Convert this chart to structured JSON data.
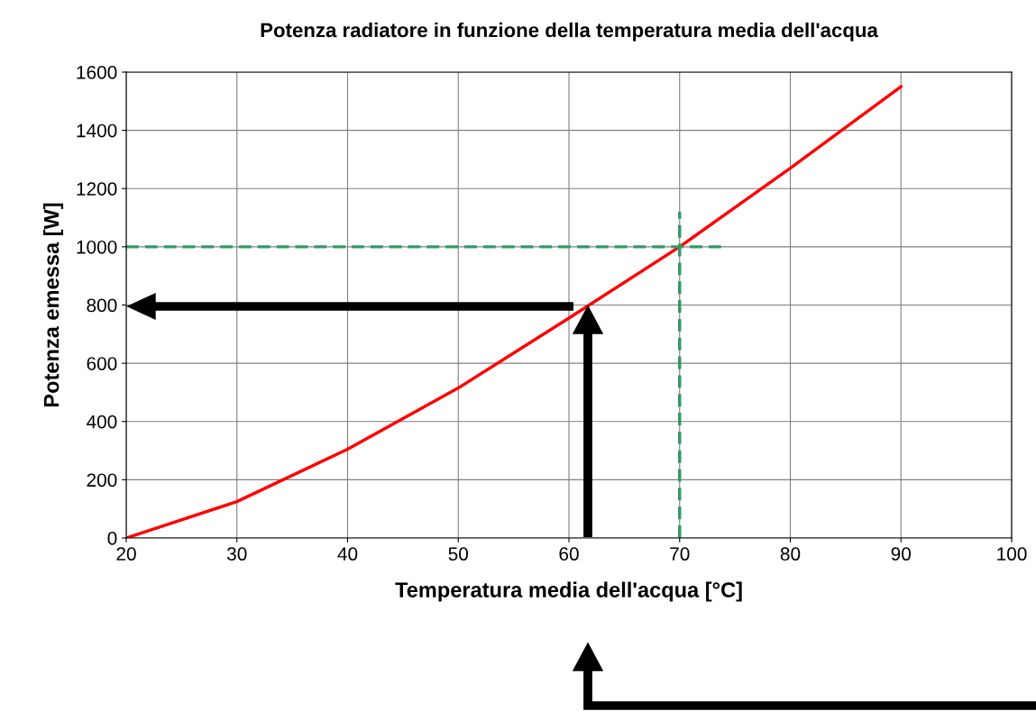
{
  "chart_data": {
    "type": "line",
    "title": "Potenza radiatore in funzione della temperatura media dell'acqua",
    "xlabel": "Temperatura media dell'acqua [°C]",
    "ylabel": "Potenza emessa [W]",
    "x": [
      20,
      30,
      40,
      50,
      60,
      70,
      80,
      90
    ],
    "series": [
      {
        "color": "#ff0000",
        "values": [
          0,
          125,
          305,
          515,
          755,
          1000,
          1270,
          1550
        ]
      },
      {
        "color": "#339966",
        "line_style": "dashed",
        "x": [
          20,
          74
        ],
        "values": [
          1000,
          1000
        ]
      },
      {
        "color": "#339966",
        "line_style": "dashed",
        "x": [
          70,
          70
        ],
        "values": [
          0,
          1120
        ]
      }
    ],
    "xlim": [
      20,
      100
    ],
    "xticks": [
      20,
      30,
      40,
      50,
      60,
      70,
      80,
      90,
      100
    ],
    "ylim": [
      0,
      1600
    ],
    "yticks": [
      0,
      200,
      400,
      600,
      800,
      1000,
      1200,
      1400,
      1600
    ],
    "grid": true,
    "marker": "none",
    "line_style": "solid"
  }
}
